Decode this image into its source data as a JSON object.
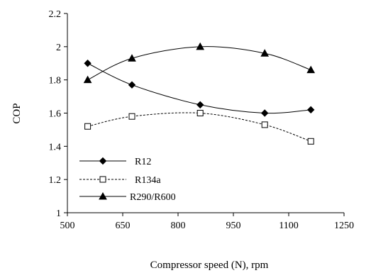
{
  "chart_data": {
    "type": "line",
    "title": "",
    "xlabel": "Compressor speed (N), rpm",
    "ylabel": "COP",
    "xlim": [
      500,
      1250
    ],
    "ylim": [
      1,
      2.2
    ],
    "xticks": [
      500,
      650,
      800,
      950,
      1100,
      1250
    ],
    "yticks": [
      1,
      1.2,
      1.4,
      1.6,
      1.8,
      2,
      2.2
    ],
    "xtick_labels": [
      "500",
      "650",
      "800",
      "950",
      "1100",
      "1250"
    ],
    "ytick_labels": [
      "1",
      "1.2",
      "1.4",
      "1.6",
      "1.8",
      "2",
      "2.2"
    ],
    "grid": false,
    "legend_position": "bottom-left",
    "series": [
      {
        "name": "R12",
        "marker": "diamond",
        "line_style": "solid",
        "x": [
          555,
          675,
          860,
          1035,
          1160
        ],
        "y": [
          1.9,
          1.77,
          1.65,
          1.6,
          1.62
        ]
      },
      {
        "name": "R134a",
        "marker": "open-square",
        "line_style": "dashed",
        "x": [
          555,
          675,
          860,
          1035,
          1160
        ],
        "y": [
          1.52,
          1.58,
          1.6,
          1.53,
          1.43
        ]
      },
      {
        "name": "R290/R600",
        "marker": "triangle",
        "line_style": "solid",
        "x": [
          555,
          675,
          860,
          1035,
          1160
        ],
        "y": [
          1.8,
          1.93,
          2.0,
          1.96,
          1.86
        ]
      }
    ]
  }
}
